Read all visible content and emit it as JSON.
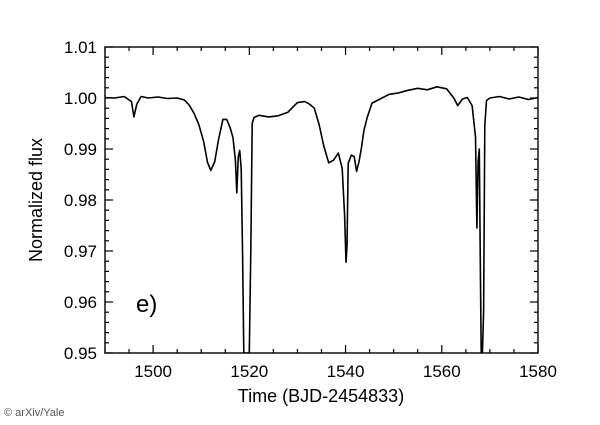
{
  "chart_data": {
    "type": "line",
    "title": "",
    "xlabel": "Time (BJD-2454833)",
    "ylabel": "Normalized flux",
    "xlim": [
      1490,
      1580
    ],
    "ylim": [
      0.95,
      1.01
    ],
    "xticks": [
      1500,
      1520,
      1540,
      1560,
      1580
    ],
    "yticks": [
      0.95,
      0.96,
      0.97,
      0.98,
      0.99,
      1.0,
      1.01
    ],
    "ytick_labels": [
      "0.95",
      "0.96",
      "0.97",
      "0.98",
      "0.99",
      "1.00",
      "1.01"
    ],
    "panel_label": "e)",
    "grid": false,
    "line_color": "#000000",
    "series": [
      {
        "x": [
          1490,
          1492,
          1494,
          1495.5,
          1496,
          1496.6,
          1497.5,
          1499,
          1501,
          1503,
          1505,
          1506.5,
          1507.5,
          1508.5,
          1509.5,
          1510.5,
          1511.3,
          1512,
          1512.8,
          1513.6,
          1514.5,
          1515.3,
          1516,
          1516.6,
          1517.1,
          1517.4,
          1517.7,
          1518.0,
          1518.3,
          1518.6,
          1518.85,
          1519.05,
          1519.25,
          1519.5,
          1519.75,
          1520.0,
          1520.3,
          1520.6,
          1521,
          1522,
          1524,
          1526,
          1528,
          1530,
          1531.5,
          1532.5,
          1533.5,
          1534.5,
          1535.5,
          1536.5,
          1537.5,
          1538.5,
          1539.3,
          1539.8,
          1540.1,
          1540.3,
          1540.55,
          1540.8,
          1541.2,
          1541.8,
          1542.3,
          1542.8,
          1543.3,
          1543.8,
          1544.5,
          1545.5,
          1547,
          1549,
          1551,
          1553,
          1555,
          1557,
          1559,
          1561,
          1562.5,
          1563.3,
          1564.3,
          1565.3,
          1566.3,
          1567.0,
          1567.3,
          1567.55,
          1567.8,
          1568.0,
          1568.2,
          1568.45,
          1568.7,
          1568.95,
          1569.3,
          1570,
          1572,
          1574,
          1576,
          1578,
          1580
        ],
        "y": [
          1.0001,
          1.0,
          1.0003,
          0.9993,
          0.9963,
          0.9988,
          1.0003,
          1.0,
          1.0002,
          0.9999,
          1.0,
          0.9996,
          0.9986,
          0.997,
          0.9948,
          0.9915,
          0.9874,
          0.9858,
          0.9875,
          0.9918,
          0.9958,
          0.9958,
          0.9942,
          0.9922,
          0.9878,
          0.9814,
          0.9885,
          0.9897,
          0.9862,
          0.969,
          0.95,
          0.95,
          0.95,
          0.95,
          0.95,
          0.95,
          0.97,
          0.995,
          0.9962,
          0.9966,
          0.9963,
          0.9965,
          0.9972,
          0.9991,
          0.9993,
          0.9988,
          0.998,
          0.9948,
          0.9905,
          0.9873,
          0.9878,
          0.9892,
          0.9862,
          0.977,
          0.9678,
          0.971,
          0.9872,
          0.9878,
          0.9888,
          0.9885,
          0.9856,
          0.9875,
          0.9902,
          0.9935,
          0.9962,
          0.999,
          0.9997,
          1.0007,
          1.001,
          1.0015,
          1.0019,
          1.0016,
          1.0022,
          1.0018,
          1.0,
          0.9985,
          0.9998,
          1.0001,
          0.9985,
          0.9924,
          0.9745,
          0.9875,
          0.99,
          0.968,
          0.95,
          0.95,
          0.958,
          0.9946,
          0.9995,
          1.0,
          1.0003,
          0.9998,
          1.0002,
          0.9997,
          1.0001
        ]
      }
    ]
  },
  "footer": {
    "credit": "© arXiv/Yale"
  }
}
